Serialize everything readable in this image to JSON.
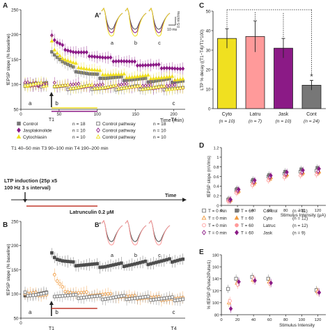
{
  "colors": {
    "black": "#222222",
    "gray": "#777777",
    "grayDark": "#4d4d4d",
    "purple": "#8b1a86",
    "yellow": "#f0e020",
    "orange": "#f19a3e",
    "salmon": "#ff9a9a",
    "red": "#c0392b",
    "lightgray": "#c8c8c8"
  },
  "panel_labels": [
    "A",
    "A′",
    "B",
    "B′",
    "C",
    "D",
    "E"
  ],
  "inset_letters": [
    "a",
    "b",
    "c"
  ],
  "chart_data": [
    {
      "id": "A",
      "type": "line",
      "xlabel": "Time (min)",
      "ylabel": "fEPSP slope (% baseline)",
      "xlim": [
        0,
        215
      ],
      "ylim": [
        50,
        250
      ],
      "xticks": [
        0,
        50,
        100,
        150,
        200
      ],
      "yticks": [
        50,
        100,
        150,
        200,
        250
      ],
      "time_markers": [
        "T1",
        "T4"
      ],
      "window_letters": [
        "a",
        "b",
        "c"
      ],
      "scale_bar": [
        "10 ms",
        "0.5 mV/ms"
      ],
      "series": [
        {
          "name": "Control",
          "n": "n = 18",
          "color": "gray",
          "marker": "square",
          "filled": true,
          "x": [
            5,
            20,
            35,
            40,
            45,
            55,
            70,
            90,
            110,
            130,
            150,
            170,
            190,
            210
          ],
          "y": [
            100,
            99,
            100,
            170,
            160,
            145,
            130,
            120,
            114,
            112,
            110,
            108,
            108,
            107
          ]
        },
        {
          "name": "Jasplakinolide",
          "n": "n = 10",
          "color": "purple",
          "marker": "diamond",
          "filled": true,
          "x": [
            5,
            20,
            35,
            40,
            45,
            55,
            70,
            90,
            110,
            130,
            150,
            170,
            190,
            210
          ],
          "y": [
            100,
            100,
            99,
            200,
            185,
            175,
            165,
            160,
            152,
            148,
            142,
            138,
            135,
            128
          ]
        },
        {
          "name": "Cytochlasin",
          "n": "n = 10",
          "color": "yellow",
          "marker": "triangle",
          "filled": true,
          "x": [
            5,
            20,
            35,
            40,
            45,
            55,
            70,
            90,
            110,
            130,
            150,
            170,
            190,
            210
          ],
          "y": [
            100,
            100,
            100,
            185,
            170,
            152,
            140,
            130,
            122,
            118,
            116,
            115,
            113,
            112
          ]
        },
        {
          "name": "Control pathway",
          "n": "n = 18",
          "color": "gray",
          "marker": "square",
          "filled": false,
          "x": [
            5,
            20,
            35,
            45,
            70,
            90,
            110,
            130,
            150,
            170,
            190,
            210
          ],
          "y": [
            100,
            98,
            100,
            95,
            93,
            94,
            92,
            93,
            94,
            92,
            93,
            91
          ]
        },
        {
          "name": "Control pathway",
          "n": "n = 10",
          "color": "purple",
          "marker": "diamond",
          "filled": false,
          "x": [
            5,
            20,
            35,
            45,
            70,
            90,
            110,
            130,
            150,
            170,
            190,
            210
          ],
          "y": [
            101,
            100,
            99,
            100,
            98,
            97,
            96,
            98,
            97,
            95,
            96,
            95
          ]
        },
        {
          "name": "Control pathway",
          "n": "n = 10",
          "color": "yellow",
          "marker": "triangle",
          "filled": false,
          "x": [
            5,
            20,
            35,
            45,
            70,
            90,
            110,
            130,
            150,
            170,
            190,
            210
          ],
          "y": [
            99,
            100,
            100,
            97,
            95,
            96,
            94,
            95,
            94,
            94,
            93,
            92
          ]
        }
      ],
      "periods": "T1 40–50 min  T3 90–100 min  T4 190–200 min"
    },
    {
      "id": "B",
      "type": "line",
      "ylabel": "fEPSP slope (% baseline)",
      "xlim": [
        0,
        215
      ],
      "ylim": [
        50,
        250
      ],
      "xticks": [
        0
      ],
      "yticks": [
        50,
        100,
        150,
        200,
        250
      ],
      "time_markers": [
        "T1",
        "T4"
      ],
      "window_letters": [
        "a",
        "b",
        "c"
      ],
      "series": [
        {
          "name": "Control",
          "color": "grayDark",
          "marker": "square",
          "filled": true,
          "x": [
            5,
            20,
            35,
            40,
            45,
            55,
            70,
            90,
            110,
            130,
            150,
            170,
            190,
            210
          ],
          "y": [
            100,
            99,
            100,
            190,
            175,
            168,
            162,
            160,
            158,
            160,
            162,
            165,
            168,
            172
          ]
        },
        {
          "name": "Latrunculin",
          "color": "orange",
          "marker": "circle",
          "filled": false,
          "x": [
            5,
            20,
            35,
            40,
            45,
            55,
            70,
            90,
            110,
            130,
            150,
            170,
            190,
            210
          ],
          "y": [
            100,
            100,
            99,
            175,
            130,
            110,
            102,
            100,
            98,
            95,
            93,
            92,
            90,
            89
          ]
        },
        {
          "name": "Control pathway",
          "color": "gray",
          "marker": "square",
          "filled": false,
          "x": [
            5,
            20,
            35,
            45,
            70,
            90,
            110,
            130,
            150,
            170,
            190,
            210
          ],
          "y": [
            100,
            99,
            100,
            98,
            95,
            94,
            92,
            93,
            92,
            91,
            90,
            90
          ]
        }
      ]
    },
    {
      "id": "C",
      "type": "bar",
      "ylabel": "LTP % decay ((T1−T4)/T1*100)",
      "ylim": [
        0,
        50
      ],
      "yticks": [
        0,
        10,
        20,
        30,
        40,
        50
      ],
      "categories": [
        "Cyto",
        "Latru",
        "Jask",
        "Cont"
      ],
      "n_labels": [
        "(n = 10)",
        "(n = 7)",
        "(n = 10)",
        "(n = 24)"
      ],
      "values": [
        36,
        37,
        31,
        12
      ],
      "errors": [
        5,
        8,
        5,
        2.5
      ],
      "colors": [
        "yellow",
        "salmon",
        "purple",
        "gray"
      ],
      "significance": "*"
    },
    {
      "id": "D",
      "type": "scatter",
      "xlabel": "Stimulus Intensity (μA)",
      "ylabel": "fEPSP slope (mV/ms)",
      "xlim": [
        0,
        130
      ],
      "ylim": [
        0,
        1.2
      ],
      "xticks": [
        0,
        20,
        40,
        60,
        80,
        100,
        120
      ],
      "yticks": [
        0,
        0.2,
        0.4,
        0.6,
        0.8,
        1.0,
        1.2
      ],
      "x": [
        10,
        20,
        40,
        60,
        80,
        100,
        120
      ],
      "series": [
        {
          "name": "Control T0",
          "color": "gray",
          "marker": "square",
          "filled": false,
          "y": [
            0.12,
            0.32,
            0.5,
            0.6,
            0.66,
            0.7,
            0.72
          ]
        },
        {
          "name": "Control T60",
          "color": "gray",
          "marker": "square",
          "filled": true,
          "y": [
            0.13,
            0.34,
            0.53,
            0.63,
            0.7,
            0.75,
            0.78
          ]
        },
        {
          "name": "Cyto T0",
          "color": "orange",
          "marker": "triangle",
          "filled": false,
          "y": [
            0.1,
            0.28,
            0.45,
            0.55,
            0.62,
            0.66,
            0.68
          ]
        },
        {
          "name": "Cyto T60",
          "color": "orange",
          "marker": "triangle",
          "filled": true,
          "y": [
            0.11,
            0.3,
            0.48,
            0.58,
            0.64,
            0.68,
            0.7
          ]
        },
        {
          "name": "Latruc T0",
          "color": "salmon",
          "marker": "circle",
          "filled": false,
          "y": [
            0.09,
            0.26,
            0.42,
            0.52,
            0.58,
            0.62,
            0.64
          ]
        },
        {
          "name": "Latruc T60",
          "color": "salmon",
          "marker": "circle",
          "filled": true,
          "y": [
            0.1,
            0.29,
            0.46,
            0.56,
            0.62,
            0.66,
            0.68
          ]
        },
        {
          "name": "Jask T0",
          "color": "purple",
          "marker": "diamond",
          "filled": false,
          "y": [
            0.11,
            0.31,
            0.49,
            0.59,
            0.65,
            0.69,
            0.71
          ]
        },
        {
          "name": "Jask T60",
          "color": "purple",
          "marker": "diamond",
          "filled": true,
          "y": [
            0.12,
            0.33,
            0.52,
            0.62,
            0.69,
            0.73,
            0.76
          ]
        }
      ],
      "legend": [
        {
          "t0": "T = 0 min",
          "t60": "T = 60",
          "group": "Control",
          "n": "(n = 11)",
          "color": "gray",
          "marker": "square"
        },
        {
          "t0": "T = 0 min",
          "t60": "T = 60",
          "group": "Cyto",
          "n": "(n = 12)",
          "color": "orange",
          "marker": "triangle"
        },
        {
          "t0": "T = 0 min",
          "t60": "T = 60",
          "group": "Latruc",
          "n": "(n = 12)",
          "color": "salmon",
          "marker": "circle"
        },
        {
          "t0": "T = 0 min",
          "t60": "T = 60",
          "group": "Jask",
          "n": "(n = 9)",
          "color": "purple",
          "marker": "diamond"
        }
      ]
    },
    {
      "id": "E",
      "type": "scatter",
      "xlabel": "Stimulus Intensity",
      "ylabel": "% fEPSP (Pulse2/Pulse1)",
      "xlim": [
        0,
        130
      ],
      "ylim": [
        80,
        180
      ],
      "xticks": [
        0,
        20,
        40,
        60,
        80,
        100,
        120
      ],
      "yticks": [
        80,
        100,
        120,
        140,
        160,
        180
      ],
      "x": [
        10,
        20,
        40,
        60,
        120
      ],
      "series": [
        {
          "name": "Control",
          "color": "gray",
          "marker": "square",
          "filled": false,
          "y": [
            123,
            140,
            143,
            140,
            121
          ]
        },
        {
          "name": "Cyto",
          "color": "orange",
          "marker": "triangle",
          "filled": false,
          "y": [
            100,
            133,
            138,
            135,
            119
          ]
        },
        {
          "name": "Latruc",
          "color": "salmon",
          "marker": "circle",
          "filled": false,
          "y": [
            103,
            130,
            140,
            132,
            118
          ]
        },
        {
          "name": "Jask",
          "color": "purple",
          "marker": "diamond",
          "filled": true,
          "y": [
            90,
            135,
            137,
            133,
            117
          ]
        }
      ]
    }
  ],
  "protocol": {
    "induction_line1": "LTP induction (25p x5",
    "induction_line2": "100 Hz 3 s interval)",
    "time_label": "Time",
    "drug_label": "Latrunculin 0.2 μM"
  }
}
